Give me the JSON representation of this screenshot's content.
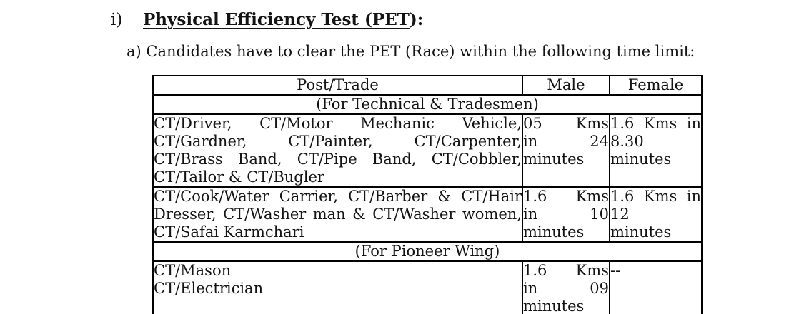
{
  "heading": {
    "numeral": "i)",
    "title_underlined": "Physical Efficiency Test (PET",
    "title_suffix": "):"
  },
  "intro": "a) Candidates have to clear the PET (Race) within the following time limit:",
  "colors": {
    "text": "#141414",
    "border": "#000000",
    "background": "#ffffff"
  },
  "table": {
    "headers": [
      "Post/Trade",
      "Male",
      "Female"
    ],
    "rows": [
      {
        "type": "section",
        "label": "(For Technical & Tradesmen)"
      },
      {
        "type": "data",
        "post_lines": [
          "CT/Driver, CT/Motor Mechanic Vehicle,",
          "CT/Gardner, CT/Painter, CT/Carpenter,",
          "CT/Brass Band, CT/Pipe Band, CT/Cobbler,",
          "CT/Tailor & CT/Bugler"
        ],
        "male_lines": [
          "05 Kms",
          "in 24",
          "minutes"
        ],
        "female_lines": [
          "1.6 Kms in",
          "8.30",
          "minutes"
        ]
      },
      {
        "type": "data",
        "post_lines": [
          "CT/Cook/Water Carrier, CT/Barber & CT/Hair",
          "Dresser, CT/Washer man & CT/Washer women,",
          "CT/Safai Karmchari"
        ],
        "male_lines": [
          "1.6 Kms",
          "in 10",
          "minutes"
        ],
        "female_lines": [
          "1.6 Kms in",
          "12",
          "minutes"
        ]
      },
      {
        "type": "section",
        "label": "(For Pioneer Wing)"
      },
      {
        "type": "data",
        "post_lines": [
          "CT/Mason",
          "CT/Electrician"
        ],
        "male_lines": [
          "1.6 Kms",
          "in 09",
          "minutes"
        ],
        "female_lines": [
          "--"
        ]
      }
    ]
  }
}
